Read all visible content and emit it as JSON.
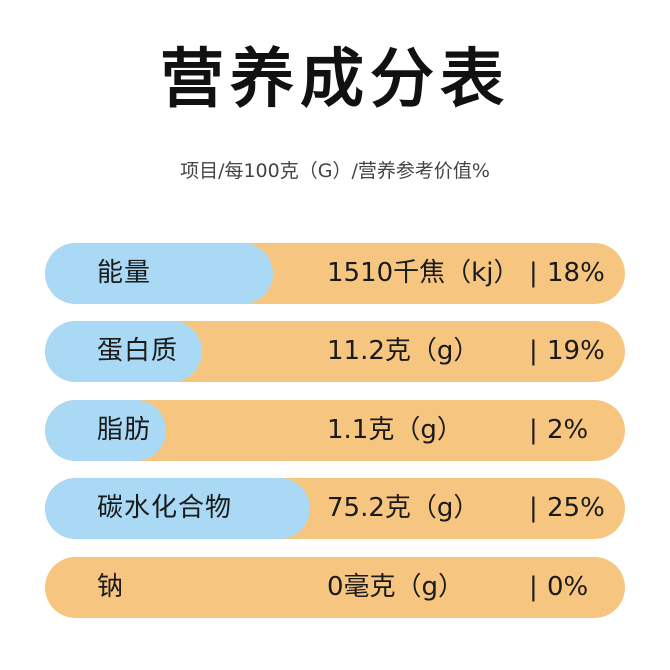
{
  "title": "营养成分表",
  "subtitle": "项目/每100克（G）/营养参考价值%",
  "colors": {
    "label_bg": "#a9d9f4",
    "row_bg": "#f6c681"
  },
  "separator": "|",
  "rows": [
    {
      "name": "能量",
      "value": "1510千焦（kj）",
      "percent": "18%"
    },
    {
      "name": "蛋白质",
      "value": "11.2克（g）",
      "percent": "19%"
    },
    {
      "name": "脂肪",
      "value": "1.1克（g）",
      "percent": "2%"
    },
    {
      "name": "碳水化合物",
      "value": "75.2克（g）",
      "percent": "25%"
    },
    {
      "name": "钠",
      "value": "0毫克（g）",
      "percent": "0%"
    }
  ]
}
